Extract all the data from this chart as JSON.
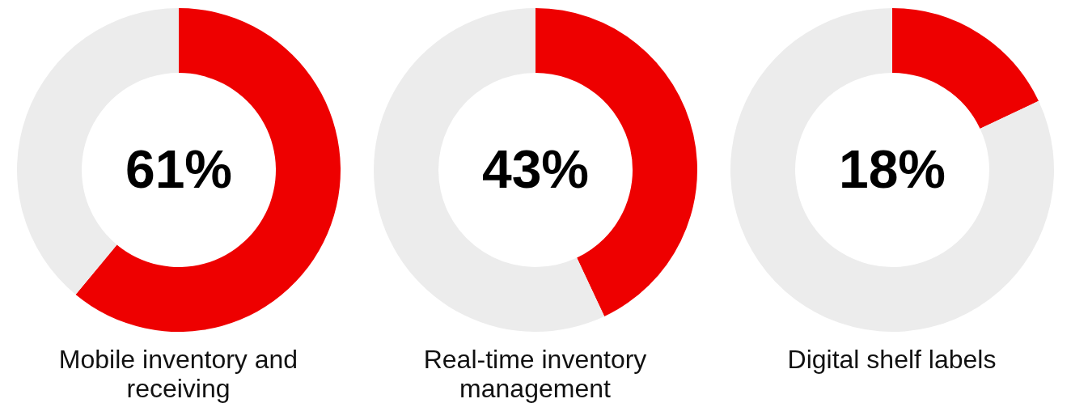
{
  "chart_data": [
    {
      "type": "donut",
      "title": "Mobile inventory and receiving",
      "categories": [
        null,
        null
      ],
      "values": [
        61,
        39
      ],
      "colors": [
        "#ee0000",
        "#ececec"
      ],
      "value_labels": [
        "61%",
        null
      ]
    },
    {
      "type": "donut",
      "title": "Real-time inventory management",
      "categories": [
        null,
        null
      ],
      "values": [
        43,
        57
      ],
      "colors": [
        "#ee0000",
        "#ececec"
      ],
      "value_labels": [
        "43%",
        null
      ]
    },
    {
      "type": "donut",
      "title": "Digital shelf labels",
      "categories": [
        null,
        null
      ],
      "values": [
        18,
        82
      ],
      "colors": [
        "#ee0000",
        "#ececec"
      ],
      "value_labels": [
        "18%",
        null
      ]
    }
  ]
}
